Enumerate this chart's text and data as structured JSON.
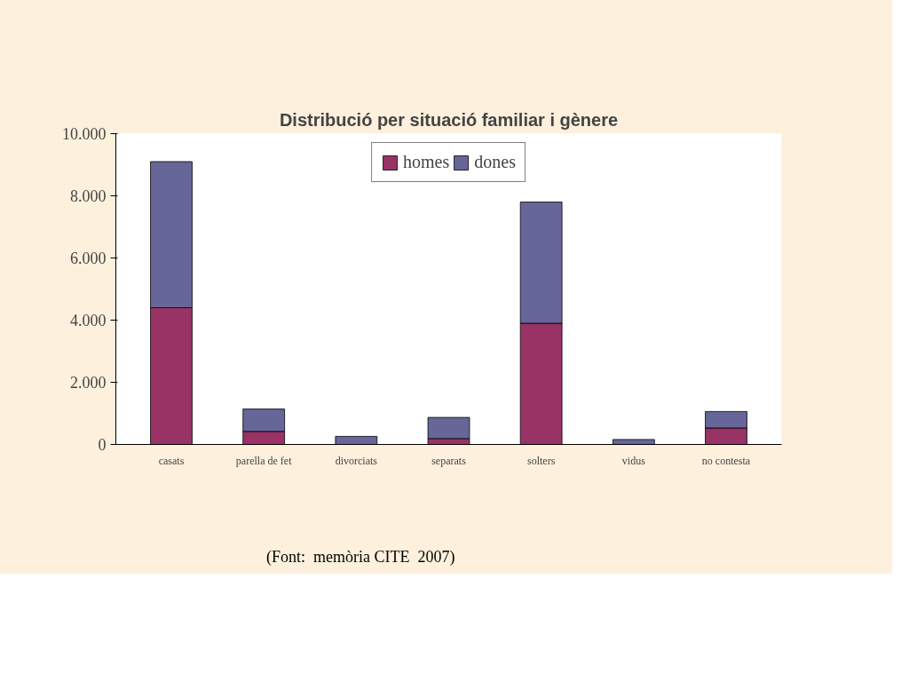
{
  "chart_data": {
    "type": "bar",
    "title": "Distribució per situació familiar i gènere",
    "categories": [
      "casats",
      "parella de fet",
      "divorciats",
      "separats",
      "solters",
      "vidus",
      "no contesta"
    ],
    "stacked": true,
    "series": [
      {
        "name": "homes",
        "color": "#993366",
        "values": [
          4400,
          420,
          null,
          190,
          3900,
          null,
          530
        ]
      },
      {
        "name": "dones",
        "color": "#666699",
        "values": [
          4700,
          720,
          260,
          680,
          3900,
          160,
          530
        ]
      }
    ],
    "ylim": [
      0,
      10000
    ],
    "yticks": [
      {
        "value": 0,
        "label": "0"
      },
      {
        "value": 2000,
        "label": "2.000"
      },
      {
        "value": 4000,
        "label": "4.000"
      },
      {
        "value": 6000,
        "label": "6.000"
      },
      {
        "value": 8000,
        "label": "8.000"
      },
      {
        "value": 10000,
        "label": "10.000"
      }
    ],
    "grid": false,
    "legend": "top",
    "annotations": [
      "(Font:  memòria CITE  2007)"
    ]
  }
}
